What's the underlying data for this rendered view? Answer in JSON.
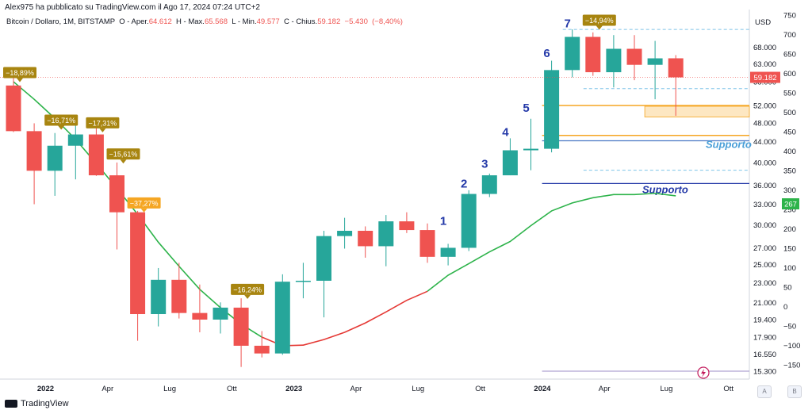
{
  "header": {
    "published": "Alex975 ha pubblicato su TradingView.com il Ago 17, 2024 07:24 UTC+2",
    "symbol": "Bitcoin / Dollaro, 1M, BITSTAMP",
    "open_label": "O - Aper.",
    "open_value": "64.612",
    "high_label": "H - Max.",
    "high_value": "65.568",
    "low_label": "L - Min.",
    "low_value": "49.577",
    "close_label": "C - Chius.",
    "close_value": "59.182",
    "change_value": "−5.430",
    "change_pct": "(−8,40%)"
  },
  "footer": {
    "brand": "TradingView",
    "btn_auto": "A",
    "btn_log": "B"
  },
  "colors": {
    "up": "#26a69a",
    "down": "#ef5350",
    "ma_green": "#2db34a",
    "ma_red": "#e53935",
    "badge": "#a88510",
    "badge_alt": "#f5a623",
    "wave_label": "#2439a8",
    "support": "#4a78c4"
  },
  "chart_data": {
    "type": "candlestick",
    "x_ticks": [
      "2022",
      "Apr",
      "Lug",
      "Ott",
      "2023",
      "Apr",
      "Lug",
      "Ott",
      "2024",
      "Apr",
      "Lug",
      "Ott"
    ],
    "right_axis": {
      "title": "USD",
      "price_ticks": [
        "68.000",
        "63.000",
        "58.000",
        "52.000",
        "48.000",
        "44.000",
        "40.000",
        "36.000",
        "33.000",
        "30.000",
        "27.000",
        "25.000",
        "23.000",
        "21.000",
        "19.400",
        "17.900",
        "16.550",
        "15.300"
      ],
      "osc_ticks": [
        "750",
        "700",
        "650",
        "600",
        "550",
        "500",
        "450",
        "400",
        "350",
        "300",
        "250",
        "200",
        "150",
        "100",
        "50",
        "0",
        "−50",
        "−100",
        "−150"
      ],
      "last_price_label": "59.182",
      "osc_label": "267"
    },
    "candles": [
      {
        "date": "2021-12",
        "o": 57000,
        "h": 59000,
        "l": 46000,
        "c": 46200
      },
      {
        "date": "2022-01",
        "o": 46200,
        "h": 47900,
        "l": 33000,
        "c": 38500
      },
      {
        "date": "2022-02",
        "o": 38500,
        "h": 45800,
        "l": 34300,
        "c": 43200
      },
      {
        "date": "2022-03",
        "o": 43200,
        "h": 48200,
        "l": 37000,
        "c": 45500
      },
      {
        "date": "2022-04",
        "o": 45500,
        "h": 47400,
        "l": 37600,
        "c": 37700
      },
      {
        "date": "2022-05",
        "o": 37700,
        "h": 40000,
        "l": 26800,
        "c": 31800
      },
      {
        "date": "2022-06",
        "o": 31800,
        "h": 32000,
        "l": 17600,
        "c": 19900
      },
      {
        "date": "2022-07",
        "o": 19900,
        "h": 24600,
        "l": 18800,
        "c": 23300
      },
      {
        "date": "2022-08",
        "o": 23300,
        "h": 25200,
        "l": 19500,
        "c": 20000
      },
      {
        "date": "2022-09",
        "o": 20000,
        "h": 22800,
        "l": 18300,
        "c": 19400
      },
      {
        "date": "2022-10",
        "o": 19400,
        "h": 21000,
        "l": 18200,
        "c": 20500
      },
      {
        "date": "2022-11",
        "o": 20500,
        "h": 21400,
        "l": 15600,
        "c": 17200
      },
      {
        "date": "2022-12",
        "o": 17200,
        "h": 18400,
        "l": 16300,
        "c": 16600
      },
      {
        "date": "2023-01",
        "o": 16600,
        "h": 23900,
        "l": 16500,
        "c": 23100
      },
      {
        "date": "2023-02",
        "o": 23100,
        "h": 25200,
        "l": 21400,
        "c": 23200
      },
      {
        "date": "2023-03",
        "o": 23200,
        "h": 29200,
        "l": 19600,
        "c": 28500
      },
      {
        "date": "2023-04",
        "o": 28500,
        "h": 31000,
        "l": 26900,
        "c": 29200
      },
      {
        "date": "2023-05",
        "o": 29200,
        "h": 29800,
        "l": 25800,
        "c": 27200
      },
      {
        "date": "2023-06",
        "o": 27200,
        "h": 31400,
        "l": 24800,
        "c": 30500
      },
      {
        "date": "2023-07",
        "o": 30500,
        "h": 31800,
        "l": 28900,
        "c": 29300
      },
      {
        "date": "2023-08",
        "o": 29300,
        "h": 30200,
        "l": 25200,
        "c": 25900
      },
      {
        "date": "2023-09",
        "o": 25900,
        "h": 27500,
        "l": 24900,
        "c": 27000
      },
      {
        "date": "2023-10",
        "o": 27000,
        "h": 35200,
        "l": 26600,
        "c": 34600
      },
      {
        "date": "2023-11",
        "o": 34600,
        "h": 38000,
        "l": 34100,
        "c": 37700
      },
      {
        "date": "2023-12",
        "o": 37700,
        "h": 44700,
        "l": 37700,
        "c": 42300
      },
      {
        "date": "2024-01",
        "o": 42300,
        "h": 48900,
        "l": 38600,
        "c": 42600
      },
      {
        "date": "2024-02",
        "o": 42600,
        "h": 63900,
        "l": 41900,
        "c": 61200
      },
      {
        "date": "2024-03",
        "o": 61200,
        "h": 73800,
        "l": 59200,
        "c": 71300
      },
      {
        "date": "2024-04",
        "o": 71300,
        "h": 72800,
        "l": 59600,
        "c": 60600
      },
      {
        "date": "2024-05",
        "o": 60600,
        "h": 71900,
        "l": 56500,
        "c": 67500
      },
      {
        "date": "2024-06",
        "o": 67500,
        "h": 71900,
        "l": 58400,
        "c": 62700
      },
      {
        "date": "2024-07",
        "o": 62700,
        "h": 70000,
        "l": 53500,
        "c": 64600
      },
      {
        "date": "2024-08",
        "o": 64612,
        "h": 65568,
        "l": 49577,
        "c": 59182
      }
    ],
    "moving_average": [
      {
        "date": "2021-12",
        "v": 58000
      },
      {
        "date": "2022-01",
        "v": 53500
      },
      {
        "date": "2022-02",
        "v": 49000
      },
      {
        "date": "2022-03",
        "v": 44500
      },
      {
        "date": "2022-04",
        "v": 39800
      },
      {
        "date": "2022-05",
        "v": 35500
      },
      {
        "date": "2022-06",
        "v": 31500
      },
      {
        "date": "2022-07",
        "v": 27700
      },
      {
        "date": "2022-08",
        "v": 24800
      },
      {
        "date": "2022-09",
        "v": 22300
      },
      {
        "date": "2022-10",
        "v": 20500
      },
      {
        "date": "2022-11",
        "v": 19000
      },
      {
        "date": "2022-12",
        "v": 17900
      },
      {
        "date": "2023-01",
        "v": 17200
      },
      {
        "date": "2023-02",
        "v": 17250
      },
      {
        "date": "2023-03",
        "v": 17700
      },
      {
        "date": "2023-04",
        "v": 18300
      },
      {
        "date": "2023-05",
        "v": 19100
      },
      {
        "date": "2023-06",
        "v": 20100
      },
      {
        "date": "2023-07",
        "v": 21200
      },
      {
        "date": "2023-08",
        "v": 22100
      },
      {
        "date": "2023-09",
        "v": 23800
      },
      {
        "date": "2023-10",
        "v": 25100
      },
      {
        "date": "2023-11",
        "v": 26500
      },
      {
        "date": "2023-12",
        "v": 27800
      },
      {
        "date": "2024-01",
        "v": 29900
      },
      {
        "date": "2024-02",
        "v": 32000
      },
      {
        "date": "2024-03",
        "v": 33200
      },
      {
        "date": "2024-04",
        "v": 34000
      },
      {
        "date": "2024-05",
        "v": 34500
      },
      {
        "date": "2024-06",
        "v": 34500
      },
      {
        "date": "2024-07",
        "v": 34700
      },
      {
        "date": "2024-08",
        "v": 34300
      }
    ],
    "ma_turn_date": "2023-08",
    "drop_badges": [
      {
        "date": "2021-12",
        "text": "−18,89%",
        "price": 60500
      },
      {
        "date": "2022-02",
        "text": "−16,71%",
        "price": 48600
      },
      {
        "date": "2022-04",
        "text": "−17,31%",
        "price": 48000
      },
      {
        "date": "2022-05",
        "text": "−15,61%",
        "price": 41600
      },
      {
        "date": "2022-06",
        "text": "−37,27%",
        "price": 33200,
        "alt": true
      },
      {
        "date": "2022-11",
        "text": "−16,24%",
        "price": 22300
      },
      {
        "date": "2024-04",
        "text": "−14,94%",
        "price": 77000
      }
    ],
    "wave_labels": [
      {
        "date": "2023-09",
        "text": "1",
        "price": 30000
      },
      {
        "date": "2023-10",
        "text": "2",
        "price": 35600
      },
      {
        "date": "2023-11",
        "text": "3",
        "price": 39000
      },
      {
        "date": "2023-12",
        "text": "4",
        "price": 45200
      },
      {
        "date": "2024-01",
        "text": "5",
        "price": 50500
      },
      {
        "date": "2024-02",
        "text": "6",
        "price": 65000
      },
      {
        "date": "2024-03",
        "text": "7",
        "price": 74500
      }
    ],
    "support_lines": [
      {
        "label": "Supporto",
        "price": 44200,
        "from": "2024-02"
      },
      {
        "label": "Supporto",
        "price": 36300,
        "from": "2024-02"
      }
    ],
    "zone": {
      "from": "2024-07",
      "to": "2024-08",
      "top": 51800,
      "bottom": 49300
    },
    "orange_lines": [
      {
        "price": 52000,
        "from": "2024-02"
      },
      {
        "price": 45300,
        "from": "2024-02"
      }
    ],
    "dashed_lines": [
      {
        "price": 73800,
        "from": "2024-03"
      },
      {
        "price": 56200,
        "from": "2024-04"
      },
      {
        "price": 38600,
        "from": "2024-04"
      }
    ],
    "purple_line": {
      "price": 15300,
      "from": "2024-02"
    }
  }
}
